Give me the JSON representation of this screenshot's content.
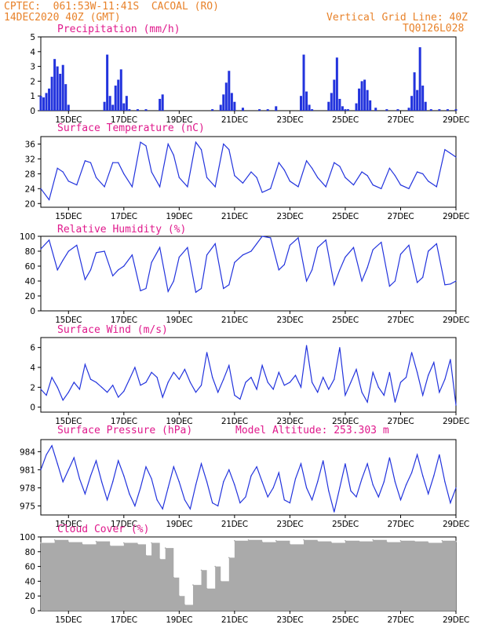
{
  "header": {
    "station": "CPTEC:  061:53W-11:41S  CACOAL (RO)",
    "run": "14DEC2020 40Z (GMT)",
    "grid": "Vertical Grid Line: 40Z",
    "code": "TQ0126L028"
  },
  "colors": {
    "header": "#e8822a",
    "title": "#e0198c",
    "line": "#2233dd",
    "bar": "#2233dd",
    "cloud": "#aaaaaa"
  },
  "chart_data": [
    {
      "type": "bar",
      "title": "Precipitation (mm/h)",
      "x_ticks": [
        "15DEC",
        "17DEC",
        "19DEC",
        "21DEC",
        "23DEC",
        "25DEC",
        "27DEC",
        "29DEC"
      ],
      "ylim": [
        0,
        5
      ],
      "y_ticks": [
        0,
        1,
        2,
        3,
        4,
        5
      ],
      "x": [
        14.0,
        14.1,
        14.2,
        14.3,
        14.4,
        14.5,
        14.6,
        14.7,
        14.8,
        14.9,
        15.0,
        16.3,
        16.4,
        16.5,
        16.6,
        16.7,
        16.8,
        16.9,
        17.0,
        17.1,
        17.2,
        17.5,
        17.8,
        18.3,
        18.4,
        20.2,
        20.5,
        20.6,
        20.7,
        20.8,
        20.9,
        21.0,
        21.3,
        21.9,
        22.2,
        22.5,
        23.4,
        23.5,
        23.6,
        23.7,
        23.8,
        24.4,
        24.5,
        24.6,
        24.7,
        24.8,
        24.9,
        25.0,
        25.1,
        25.4,
        25.5,
        25.6,
        25.7,
        25.8,
        25.9,
        26.1,
        26.5,
        26.9,
        27.3,
        27.4,
        27.5,
        27.6,
        27.7,
        27.8,
        27.9,
        28.1,
        28.4,
        28.7,
        29.0
      ],
      "values": [
        1.0,
        0.9,
        1.2,
        1.5,
        2.3,
        3.5,
        3.0,
        2.5,
        3.1,
        1.8,
        0.4,
        0.6,
        3.8,
        1.0,
        0.4,
        1.7,
        2.1,
        2.8,
        0.5,
        1.0,
        0.1,
        0.1,
        0.1,
        0.8,
        1.1,
        0.1,
        0.4,
        1.1,
        1.9,
        2.7,
        1.2,
        0.6,
        0.2,
        0.1,
        0.1,
        0.3,
        1.0,
        3.8,
        1.3,
        0.4,
        0.1,
        0.6,
        1.2,
        2.1,
        3.6,
        0.8,
        0.3,
        0.1,
        0.1,
        0.5,
        1.5,
        2.0,
        2.1,
        1.4,
        0.7,
        0.2,
        0.1,
        0.1,
        0.2,
        1.0,
        2.6,
        1.4,
        4.3,
        1.7,
        0.6,
        0.1,
        0.1,
        0.1,
        0.1
      ]
    },
    {
      "type": "line",
      "title": "Surface Temperature (nC)",
      "x_ticks": [
        "15DEC",
        "17DEC",
        "19DEC",
        "21DEC",
        "23DEC",
        "25DEC",
        "27DEC",
        "29DEC"
      ],
      "ylim": [
        19,
        38
      ],
      "y_ticks": [
        20,
        24,
        28,
        32,
        36
      ],
      "x": [
        14.0,
        14.3,
        14.6,
        14.8,
        15.0,
        15.3,
        15.6,
        15.8,
        16.0,
        16.3,
        16.6,
        16.8,
        17.0,
        17.3,
        17.6,
        17.8,
        18.0,
        18.3,
        18.6,
        18.8,
        19.0,
        19.3,
        19.6,
        19.8,
        20.0,
        20.3,
        20.6,
        20.8,
        21.0,
        21.3,
        21.6,
        21.8,
        22.0,
        22.3,
        22.6,
        22.8,
        23.0,
        23.3,
        23.6,
        23.8,
        24.0,
        24.3,
        24.6,
        24.8,
        25.0,
        25.3,
        25.6,
        25.8,
        26.0,
        26.3,
        26.6,
        26.8,
        27.0,
        27.3,
        27.6,
        27.8,
        28.0,
        28.3,
        28.6,
        28.8,
        29.0
      ],
      "values": [
        24.0,
        21.0,
        29.5,
        28.5,
        26.0,
        25.0,
        31.5,
        31.0,
        27.0,
        24.5,
        31.0,
        31.0,
        28.0,
        24.5,
        36.5,
        35.5,
        28.5,
        24.5,
        36.0,
        33.0,
        27.0,
        24.5,
        36.5,
        34.5,
        27.0,
        24.5,
        36.0,
        34.5,
        27.5,
        25.5,
        28.5,
        27.0,
        23.0,
        24.0,
        31.0,
        29.0,
        26.0,
        24.5,
        31.5,
        29.5,
        27.0,
        24.5,
        31.0,
        30.0,
        27.0,
        25.0,
        28.5,
        27.5,
        25.0,
        24.0,
        29.5,
        27.5,
        25.0,
        24.0,
        28.5,
        28.0,
        26.0,
        24.5,
        34.5,
        33.5,
        32.5
      ]
    },
    {
      "type": "line",
      "title": "Relative Humidity (%)",
      "x_ticks": [
        "15DEC",
        "17DEC",
        "19DEC",
        "21DEC",
        "23DEC",
        "25DEC",
        "27DEC",
        "29DEC"
      ],
      "ylim": [
        0,
        100
      ],
      "y_ticks": [
        0,
        20,
        40,
        60,
        80,
        100
      ],
      "x": [
        14.0,
        14.3,
        14.6,
        14.8,
        15.0,
        15.3,
        15.6,
        15.8,
        16.0,
        16.3,
        16.6,
        16.8,
        17.0,
        17.3,
        17.6,
        17.8,
        18.0,
        18.3,
        18.6,
        18.8,
        19.0,
        19.3,
        19.6,
        19.8,
        20.0,
        20.3,
        20.6,
        20.8,
        21.0,
        21.3,
        21.6,
        21.8,
        22.0,
        22.3,
        22.6,
        22.8,
        23.0,
        23.3,
        23.6,
        23.8,
        24.0,
        24.3,
        24.6,
        24.8,
        25.0,
        25.3,
        25.6,
        25.8,
        26.0,
        26.3,
        26.6,
        26.8,
        27.0,
        27.3,
        27.6,
        27.8,
        28.0,
        28.3,
        28.6,
        28.8,
        29.0
      ],
      "values": [
        83,
        95,
        55,
        68,
        80,
        88,
        42,
        55,
        78,
        80,
        47,
        55,
        60,
        75,
        27,
        30,
        65,
        85,
        26,
        40,
        72,
        85,
        25,
        30,
        75,
        90,
        30,
        35,
        65,
        75,
        80,
        90,
        100,
        98,
        55,
        62,
        88,
        98,
        40,
        55,
        85,
        95,
        35,
        55,
        72,
        85,
        40,
        58,
        82,
        92,
        33,
        40,
        76,
        88,
        38,
        45,
        80,
        90,
        35,
        36,
        40
      ]
    },
    {
      "type": "line",
      "title": "Surface Wind (m/s)",
      "x_ticks": [
        "15DEC",
        "17DEC",
        "19DEC",
        "21DEC",
        "23DEC",
        "25DEC",
        "27DEC",
        "29DEC"
      ],
      "ylim": [
        -0.5,
        7
      ],
      "y_ticks": [
        0,
        2,
        4,
        6
      ],
      "x": [
        14.0,
        14.2,
        14.4,
        14.6,
        14.8,
        15.0,
        15.2,
        15.4,
        15.6,
        15.8,
        16.0,
        16.2,
        16.4,
        16.6,
        16.8,
        17.0,
        17.2,
        17.4,
        17.6,
        17.8,
        18.0,
        18.2,
        18.4,
        18.6,
        18.8,
        19.0,
        19.2,
        19.4,
        19.6,
        19.8,
        20.0,
        20.2,
        20.4,
        20.6,
        20.8,
        21.0,
        21.2,
        21.4,
        21.6,
        21.8,
        22.0,
        22.2,
        22.4,
        22.6,
        22.8,
        23.0,
        23.2,
        23.4,
        23.6,
        23.8,
        24.0,
        24.2,
        24.4,
        24.6,
        24.8,
        25.0,
        25.2,
        25.4,
        25.6,
        25.8,
        26.0,
        26.2,
        26.4,
        26.6,
        26.8,
        27.0,
        27.2,
        27.4,
        27.6,
        27.8,
        28.0,
        28.2,
        28.4,
        28.6,
        28.8,
        29.0
      ],
      "values": [
        1.8,
        1.2,
        3.0,
        2.0,
        0.7,
        1.5,
        2.5,
        1.8,
        4.3,
        2.8,
        2.5,
        2.0,
        1.5,
        2.2,
        1.0,
        1.6,
        2.8,
        4.0,
        2.2,
        2.5,
        3.5,
        3.0,
        1.0,
        2.5,
        3.5,
        2.8,
        3.8,
        2.5,
        1.5,
        2.2,
        5.5,
        3.0,
        1.5,
        2.8,
        4.2,
        1.2,
        0.8,
        2.5,
        3.0,
        1.8,
        4.2,
        2.5,
        1.8,
        3.5,
        2.2,
        2.5,
        3.2,
        2.0,
        6.2,
        2.5,
        1.5,
        3.0,
        1.8,
        2.8,
        6.0,
        1.2,
        2.5,
        3.8,
        1.5,
        0.5,
        3.5,
        2.0,
        1.2,
        3.5,
        0.5,
        2.5,
        3.0,
        5.5,
        3.5,
        1.2,
        3.2,
        4.5,
        1.5,
        2.8,
        4.8,
        0.2
      ]
    },
    {
      "type": "line",
      "title": "Surface Pressure (hPa)",
      "subtitle": "Model Altitude: 253.303 m",
      "x_ticks": [
        "15DEC",
        "17DEC",
        "19DEC",
        "21DEC",
        "23DEC",
        "25DEC",
        "27DEC",
        "29DEC"
      ],
      "ylim": [
        973.5,
        986
      ],
      "y_ticks": [
        975,
        978,
        981,
        984
      ],
      "x": [
        14.0,
        14.2,
        14.4,
        14.6,
        14.8,
        15.0,
        15.2,
        15.4,
        15.6,
        15.8,
        16.0,
        16.2,
        16.4,
        16.6,
        16.8,
        17.0,
        17.2,
        17.4,
        17.6,
        17.8,
        18.0,
        18.2,
        18.4,
        18.6,
        18.8,
        19.0,
        19.2,
        19.4,
        19.6,
        19.8,
        20.0,
        20.2,
        20.4,
        20.6,
        20.8,
        21.0,
        21.2,
        21.4,
        21.6,
        21.8,
        22.0,
        22.2,
        22.4,
        22.6,
        22.8,
        23.0,
        23.2,
        23.4,
        23.6,
        23.8,
        24.0,
        24.2,
        24.4,
        24.6,
        24.8,
        25.0,
        25.2,
        25.4,
        25.6,
        25.8,
        26.0,
        26.2,
        26.4,
        26.6,
        26.8,
        27.0,
        27.2,
        27.4,
        27.6,
        27.8,
        28.0,
        28.2,
        28.4,
        28.6,
        28.8,
        29.0
      ],
      "values": [
        981.0,
        983.5,
        985.0,
        982.0,
        979.0,
        981.0,
        983.0,
        979.5,
        977.0,
        980.0,
        982.5,
        979.0,
        976.0,
        979.0,
        982.5,
        980.0,
        977.0,
        975.0,
        978.0,
        981.5,
        979.5,
        976.0,
        974.5,
        978.0,
        981.5,
        979.0,
        976.0,
        974.5,
        978.5,
        982.0,
        979.0,
        975.5,
        975.0,
        979.0,
        981.0,
        978.5,
        975.5,
        976.5,
        980.0,
        981.5,
        979.0,
        976.5,
        978.0,
        980.5,
        976.0,
        975.5,
        979.5,
        982.0,
        978.0,
        976.0,
        979.0,
        982.5,
        977.5,
        974.0,
        978.0,
        982.0,
        977.5,
        976.5,
        979.5,
        982.0,
        978.5,
        976.5,
        979.0,
        983.0,
        979.0,
        976.0,
        978.5,
        980.5,
        983.5,
        980.0,
        977.0,
        980.0,
        983.5,
        979.0,
        975.5,
        978.0
      ]
    },
    {
      "type": "bar",
      "title": "Cloud Cover (%)",
      "x_ticks": [
        "15DEC",
        "17DEC",
        "19DEC",
        "21DEC",
        "23DEC",
        "25DEC",
        "27DEC",
        "29DEC"
      ],
      "ylim": [
        0,
        100
      ],
      "y_ticks": [
        0,
        20,
        40,
        60,
        80,
        100
      ],
      "x": [
        14.0,
        14.5,
        15.0,
        15.5,
        16.0,
        16.5,
        17.0,
        17.5,
        17.8,
        18.0,
        18.3,
        18.5,
        18.8,
        19.0,
        19.2,
        19.5,
        19.8,
        20.0,
        20.3,
        20.5,
        20.8,
        21.0,
        21.5,
        22.0,
        22.5,
        23.0,
        23.5,
        24.0,
        24.5,
        25.0,
        25.5,
        26.0,
        26.5,
        27.0,
        27.5,
        28.0,
        28.5,
        29.0
      ],
      "values": [
        92,
        96,
        93,
        90,
        94,
        88,
        92,
        90,
        75,
        92,
        70,
        85,
        45,
        20,
        8,
        35,
        55,
        30,
        60,
        40,
        72,
        95,
        96,
        93,
        95,
        90,
        96,
        94,
        92,
        95,
        94,
        96,
        93,
        95,
        94,
        92,
        95,
        94
      ]
    }
  ]
}
